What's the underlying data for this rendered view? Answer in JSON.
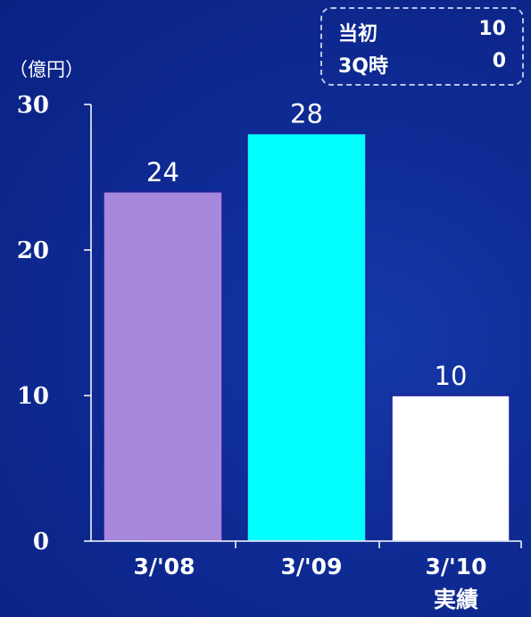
{
  "unit_label": "（億円）",
  "note": {
    "rows": [
      {
        "label": "当初",
        "value": "10"
      },
      {
        "label": "3Q時",
        "value": "0"
      }
    ]
  },
  "colors": {
    "background": "#0f2c96",
    "axis": "#ffffff",
    "bar_colors": [
      "#a787dc",
      "#00ffff",
      "#ffffff"
    ]
  },
  "chart_data": {
    "type": "bar",
    "categories": [
      "3/'08",
      "3/'09",
      "3/'10"
    ],
    "category_sublabels": [
      "",
      "",
      "実績"
    ],
    "values": [
      24,
      28,
      10
    ],
    "data_labels": [
      "24",
      "28",
      "10"
    ],
    "y_ticks": [
      0,
      10,
      20,
      30
    ],
    "ylim": [
      0,
      30
    ],
    "title": "",
    "xlabel": "",
    "ylabel": "（億円）",
    "grid": false,
    "legend": "none"
  }
}
